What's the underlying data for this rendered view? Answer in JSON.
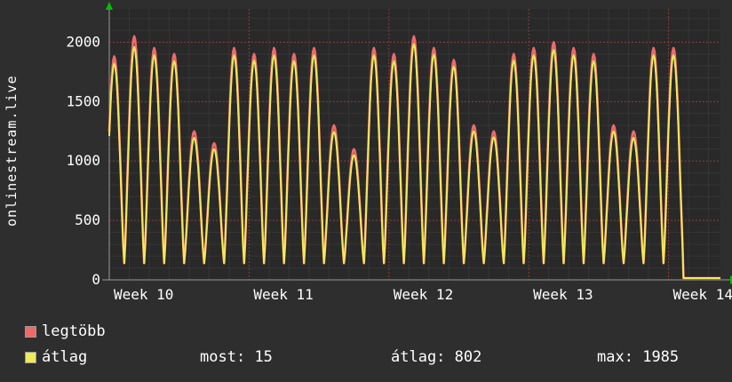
{
  "watermark": "onlinestream.live",
  "chart_data": {
    "type": "line",
    "title": "",
    "xlabel": "",
    "ylabel": "",
    "grid": true,
    "legend_position": "bottom-left",
    "total_days": 30.6,
    "ylim": [
      0,
      2280
    ],
    "yticks": [
      0,
      500,
      1000,
      1500,
      2000
    ],
    "week_labels": [
      "Week 10",
      "Week 11",
      "Week 12",
      "Week 13",
      "Week 14"
    ],
    "trough": 140,
    "current_flat_value": 15,
    "series": [
      {
        "name": "legtöbb",
        "color": "#ee6a6a",
        "day_peaks": [
          1880,
          2050,
          1950,
          1900,
          1250,
          1150,
          1950,
          1900,
          1950,
          1900,
          1950,
          1300,
          1100,
          1950,
          1900,
          2050,
          1950,
          1850,
          1300,
          1250,
          1900,
          1950,
          2000,
          1950,
          1900,
          1300,
          1250,
          1950,
          1950
        ]
      },
      {
        "name": "átlag",
        "color": "#efea5a",
        "day_peaks": [
          1820,
          1960,
          1890,
          1840,
          1195,
          1100,
          1890,
          1845,
          1890,
          1840,
          1890,
          1245,
          1050,
          1890,
          1840,
          1985,
          1895,
          1795,
          1250,
          1200,
          1845,
          1890,
          1935,
          1890,
          1840,
          1250,
          1195,
          1890,
          1890
        ]
      }
    ],
    "stats": {
      "most": 15,
      "atlag": 802,
      "max": 1985
    }
  },
  "legend": {
    "items": [
      {
        "label": "legtöbb",
        "color": "#ee6a6a"
      },
      {
        "label": "átlag",
        "color": "#efea5a"
      }
    ]
  },
  "stats_row": {
    "most_label": "most:",
    "most_value": "15",
    "atlag_label": "átlag:",
    "atlag_value": "802",
    "max_label": "max:",
    "max_value": "1985"
  },
  "colors": {
    "background": "#2e2e2e",
    "plot_canvas": "#292929",
    "text": "#ffffff",
    "grid_major": "rgba(236,86,86,0.5)",
    "grid_minor": "rgba(255,255,255,0.06)",
    "axis": "#9a9a9a",
    "axis_arrow": "#00c000"
  }
}
